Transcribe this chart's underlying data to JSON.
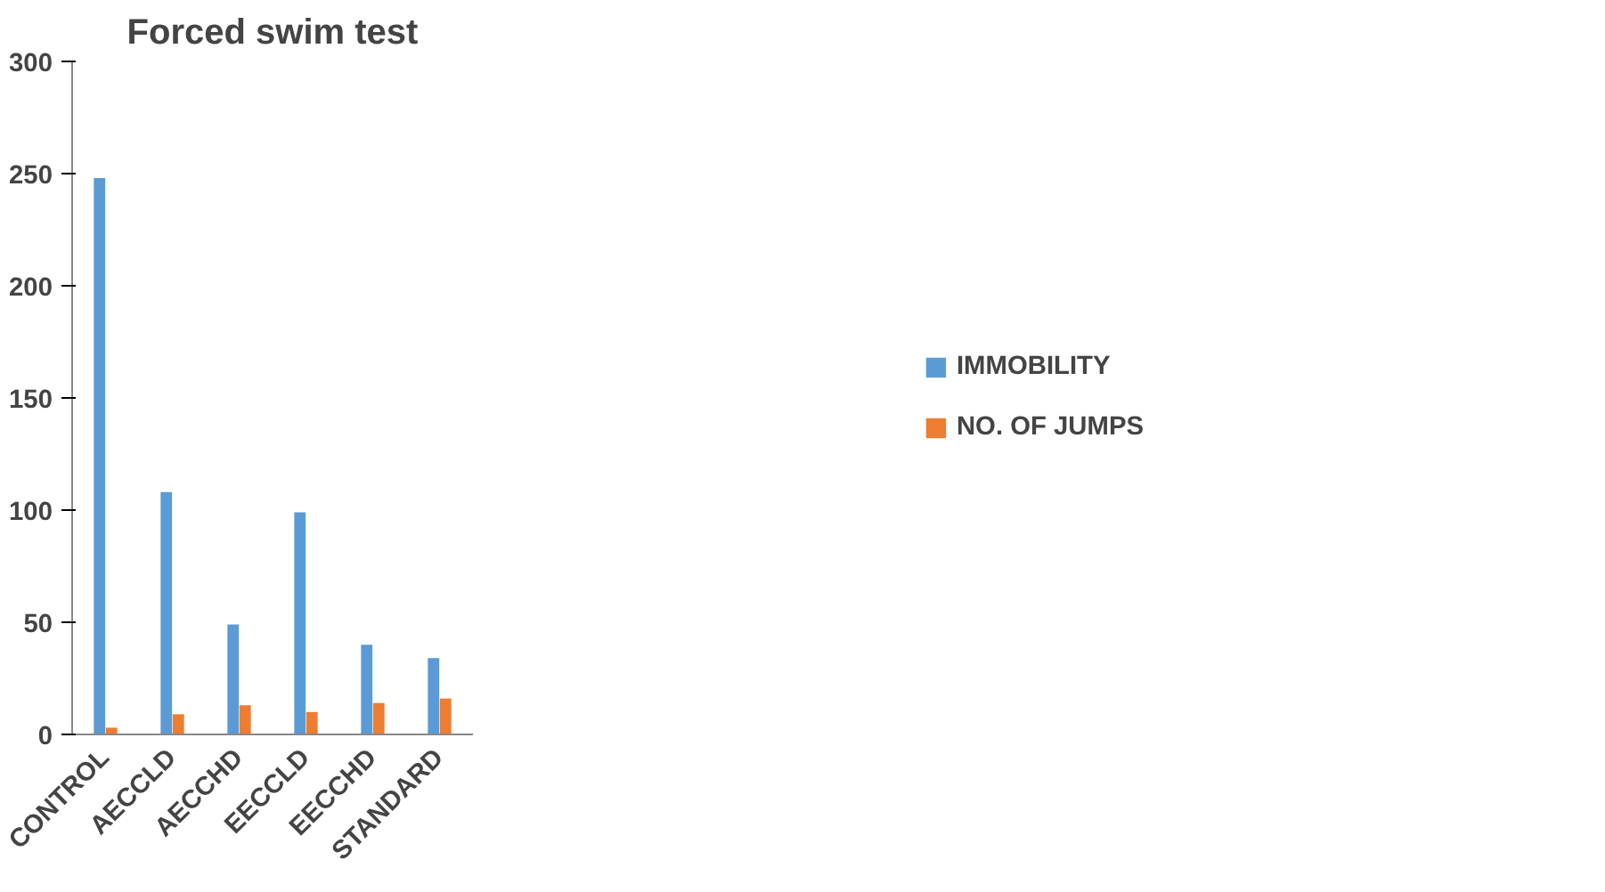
{
  "chart_data": {
    "type": "bar",
    "title": "Forced swim test",
    "categories": [
      "CONTROL",
      "AECCLD",
      "AECCHD",
      "EECCLD",
      "EECCHD",
      "STANDARD"
    ],
    "series": [
      {
        "name": "IMMOBILITY",
        "color": "#5b9bd5",
        "values": [
          248,
          108,
          49,
          99,
          40,
          34
        ]
      },
      {
        "name": "NO. OF JUMPS",
        "color": "#ed7d31",
        "values": [
          3,
          9,
          13,
          10,
          14,
          16
        ]
      }
    ],
    "ylim": [
      0,
      300
    ],
    "yticks": [
      0,
      50,
      100,
      150,
      200,
      250,
      300
    ],
    "grid": false,
    "legend": "right"
  }
}
